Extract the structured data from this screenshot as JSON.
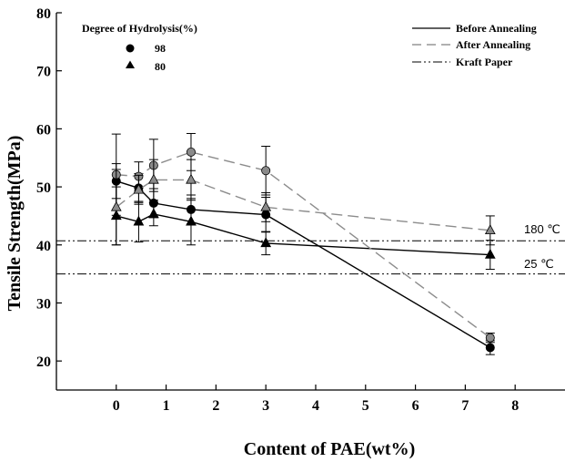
{
  "chart_data": {
    "type": "line",
    "xlabel": "Content of PAE(wt%)",
    "ylabel": "Tensile Strength(MPa)",
    "xlim": [
      -1.2,
      9
    ],
    "ylim": [
      15,
      80
    ],
    "xticks": [
      0,
      1,
      2,
      3,
      4,
      5,
      6,
      7,
      8
    ],
    "yticks": [
      20,
      30,
      40,
      50,
      60,
      70,
      80
    ],
    "grid": false,
    "legend_markers": {
      "title": "Degree of Hydrolysis(%)",
      "placement": "top-left",
      "entries": [
        {
          "label": "98",
          "marker": "circle"
        },
        {
          "label": "80",
          "marker": "triangle"
        }
      ]
    },
    "legend_lines": {
      "placement": "top-right",
      "entries": [
        {
          "label": "Before Annealing",
          "style": "solid",
          "color": "#000000"
        },
        {
          "label": "After Annealing",
          "style": "dashed",
          "color": "#808080"
        },
        {
          "label": "Kraft Paper",
          "style": "dash-dot-dot",
          "color": "#000000"
        }
      ]
    },
    "series": [
      {
        "degree": "98",
        "condition": "Before Annealing",
        "marker": "circle",
        "line_style": "solid",
        "x": [
          0,
          0.45,
          0.75,
          1.5,
          3,
          7.5
        ],
        "y": [
          51,
          49.8,
          47.2,
          46.1,
          45.2,
          22.3
        ],
        "err": [
          3,
          2.5,
          2.5,
          2.5,
          3,
          1.2
        ]
      },
      {
        "degree": "80",
        "condition": "Before Annealing",
        "marker": "triangle",
        "line_style": "solid",
        "x": [
          0,
          0.45,
          0.75,
          1.5,
          3,
          7.5
        ],
        "y": [
          45,
          44,
          45.3,
          44,
          40.3,
          38.3
        ],
        "err": [
          5,
          3.5,
          2,
          4,
          2,
          2.5
        ]
      },
      {
        "degree": "98",
        "condition": "After Annealing",
        "marker": "circle",
        "line_style": "dashed",
        "x": [
          0,
          0.45,
          0.75,
          1.5,
          3,
          7.5
        ],
        "y": [
          52.1,
          51.8,
          53.7,
          56.0,
          52.8,
          24.0
        ],
        "err": [
          7,
          2.5,
          4.5,
          3.2,
          4.2,
          0.8
        ]
      },
      {
        "degree": "80",
        "condition": "After Annealing",
        "marker": "triangle",
        "line_style": "dashed",
        "x": [
          0,
          0.45,
          0.75,
          1.5,
          3,
          7.5
        ],
        "y": [
          46.5,
          49.5,
          51.2,
          51.2,
          46.5,
          42.5
        ],
        "err": [
          6.5,
          2.5,
          3.5,
          3.5,
          2.5,
          2.5
        ]
      }
    ],
    "reference_lines": [
      {
        "label": "180 ℃",
        "y": 40.7
      },
      {
        "label": "25 ℃",
        "y": 35.0
      }
    ]
  }
}
